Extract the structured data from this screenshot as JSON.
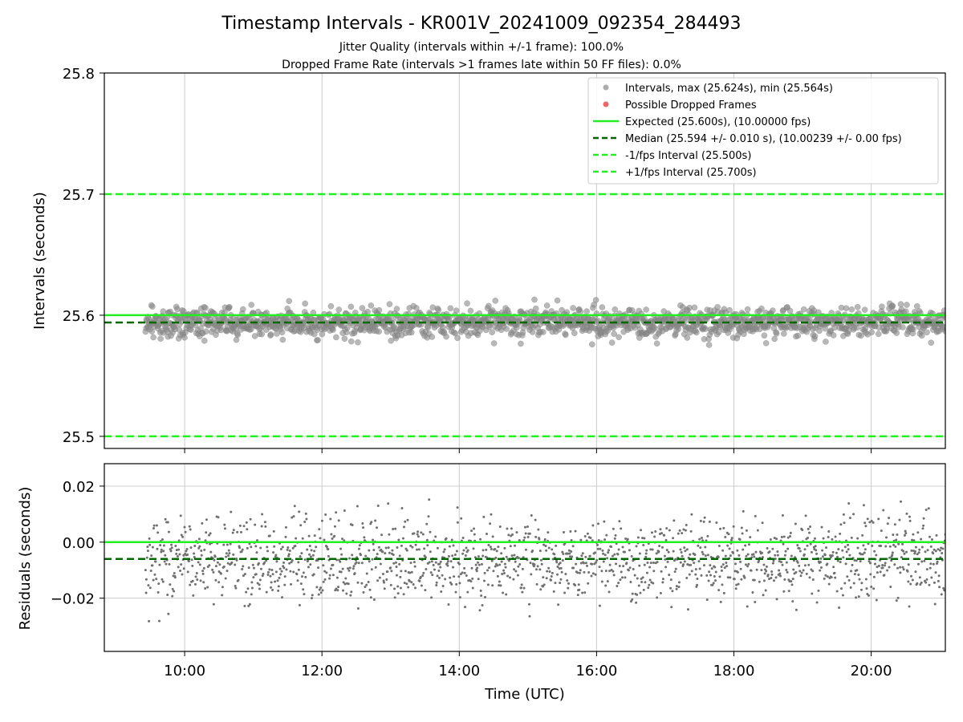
{
  "chart_data": [
    {
      "type": "scatter",
      "title": "Timestamp Intervals - KR001V_20241009_092354_284493",
      "subtitle_lines": [
        "Jitter Quality (intervals within +/-1 frame): 100.0%",
        "Dropped Frame Rate (intervals >1 frames late within 50 FF files): 0.0%"
      ],
      "ylabel": "Intervals (seconds)",
      "ylim": [
        25.49,
        25.8
      ],
      "yticks": [
        "25.5",
        "25.6",
        "25.7",
        "25.8"
      ],
      "xlim_hours": [
        8.83,
        21.08
      ],
      "x_range_data_hours": [
        9.43,
        21.08
      ],
      "series_summary": {
        "intervals": {
          "max": 25.624,
          "min": 25.564,
          "center": 25.594,
          "std": 0.01,
          "count": 1640
        },
        "possible_dropped_frames": {
          "count": 0
        }
      },
      "lines": [
        {
          "label": "Expected (25.600s), (10.00000 fps)",
          "y": 25.6,
          "color": "#22ee22",
          "style": "solid"
        },
        {
          "label": "Median (25.594 +/- 0.010 s), (10.00239 +/- 0.00 fps)",
          "y": 25.594,
          "color": "#006600",
          "style": "dashed"
        },
        {
          "label": "-1/fps Interval (25.500s)",
          "y": 25.5,
          "color": "#22ee22",
          "style": "dashed"
        },
        {
          "label": "+1/fps Interval (25.700s)",
          "y": 25.7,
          "color": "#22ee22",
          "style": "dashed"
        }
      ],
      "legend": {
        "placement": "upper-right",
        "entries": [
          {
            "label": "Intervals, max (25.624s), min (25.564s)",
            "marker": "dot",
            "color": "#999999"
          },
          {
            "label": "Possible Dropped Frames",
            "marker": "dot",
            "color": "#ee5555"
          },
          {
            "label": "Expected (25.600s), (10.00000 fps)",
            "marker": "solid",
            "color": "#22ee22"
          },
          {
            "label": "Median (25.594 +/- 0.010 s), (10.00239 +/- 0.00 fps)",
            "marker": "dashed",
            "color": "#006600"
          },
          {
            "label": "-1/fps Interval (25.500s)",
            "marker": "dashed",
            "color": "#22ee22"
          },
          {
            "label": "+1/fps Interval (25.700s)",
            "marker": "dashed",
            "color": "#22ee22"
          }
        ]
      },
      "grid": true
    },
    {
      "type": "scatter",
      "ylabel": "Residuals (seconds)",
      "xlabel": "Time (UTC)",
      "ylim": [
        -0.039,
        0.028
      ],
      "yticks": [
        "0.02",
        "0.00",
        "−0.02"
      ],
      "xticks": [
        "10:00",
        "12:00",
        "14:00",
        "16:00",
        "18:00",
        "20:00"
      ],
      "xlim_hours": [
        8.83,
        21.08
      ],
      "series_summary": {
        "center": -0.006,
        "std": 0.01,
        "count": 1640
      },
      "lines": [
        {
          "y": 0.0,
          "color": "#22ee22",
          "style": "solid"
        },
        {
          "y": -0.006,
          "color": "#006600",
          "style": "dashed"
        }
      ],
      "grid": true
    }
  ]
}
